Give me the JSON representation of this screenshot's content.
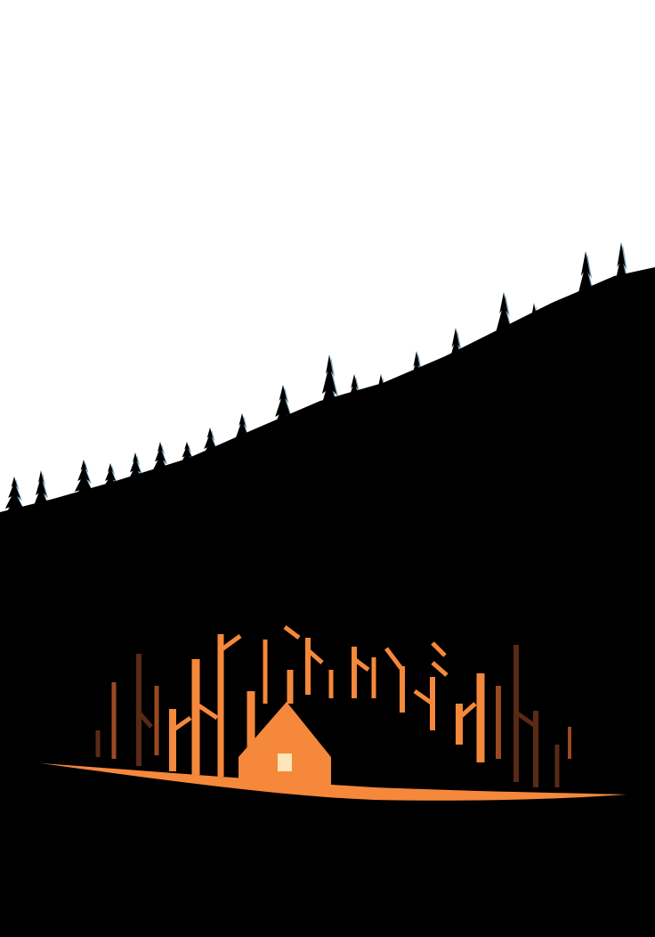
{
  "scene": {
    "subject": "forest-cabin-illustration",
    "palette": {
      "sky": "#ffffff",
      "forest": "#000000",
      "forest_edge": "#1f5f86",
      "glow": "#f5883a",
      "cabin": "#f5883a",
      "window": "#ffe6b8",
      "dark_trunk": "#5a2a16",
      "mid_trunk": "#9a4a22"
    },
    "elements": [
      "pine-treeline",
      "cabin",
      "cabin-window",
      "glowing-ground",
      "tree-trunks"
    ]
  }
}
